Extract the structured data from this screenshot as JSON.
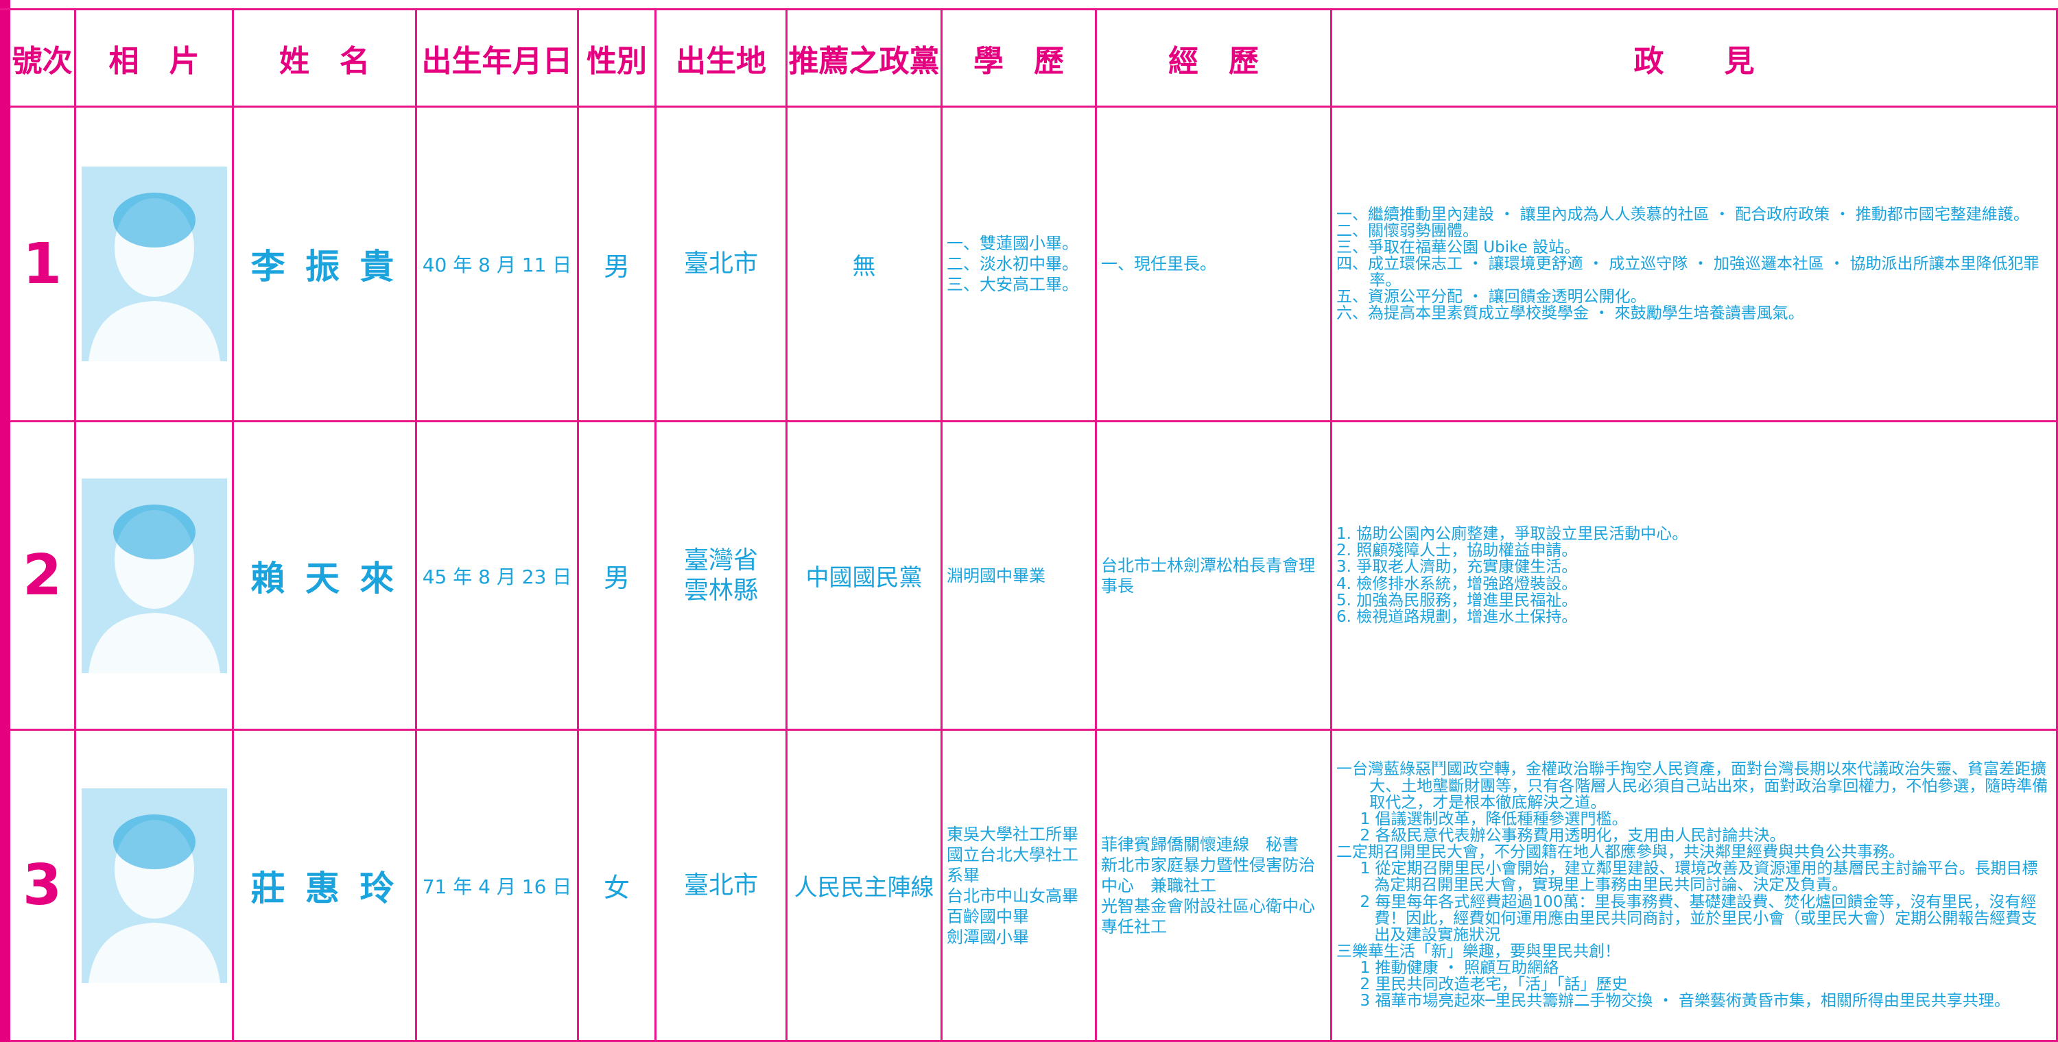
{
  "header": {
    "columns": [
      "號次",
      "相　片",
      "姓　名",
      "出生年月日",
      "性別",
      "出生地",
      "推薦之政黨",
      "學　歷",
      "經　歷",
      "政　　見"
    ]
  },
  "table": {
    "rows": [
      {
        "number": "1",
        "name": "李 振 貴",
        "birth": "40 年 8 月 11 日",
        "sex": "男",
        "place": [
          "臺北市"
        ],
        "party": "無",
        "education": [
          "一、雙蓮國小畢。",
          "二、淡水初中畢。",
          "三、大安高工畢。"
        ],
        "experience": [
          "一、現任里長。"
        ],
        "policy": [
          "一、繼續推動里內建設 ・ 讓里內成為人人羡慕的社區 ・ 配合政府政策 ・ 推動都市國宅整建維護。",
          "二、關懷弱勢團體。",
          "三、爭取在福華公園 Ubike 設站。",
          "四、成立環保志工 ・ 讓環境更舒適 ・ 成立巡守隊 ・ 加強巡邏本社區 ・ 協助派出所讓本里降低犯罪率。",
          "五、資源公平分配 ・ 讓回饋金透明公開化。",
          "六、為提高本里素質成立學校獎學金 ・ 來鼓勵學生培養讀書風氣。"
        ]
      },
      {
        "number": "2",
        "name": "賴 天 來",
        "birth": "45 年 8 月 23 日",
        "sex": "男",
        "place": [
          "臺灣省",
          "雲林縣"
        ],
        "party": "中國國民黨",
        "education": [
          "淵明國中畢業"
        ],
        "experience": [
          "台北市士林劍潭松柏長青會理事長"
        ],
        "policy": [
          "1. 協助公園內公廁整建，爭取設立里民活動中心。",
          "2. 照顧殘障人士，協助權益申請。",
          "3. 爭取老人濟助，充實康健生活。",
          "4. 檢修排水系統，增強路燈裝設。",
          "5. 加強為民服務，增進里民福祉。",
          "6. 檢視道路規劃，增進水土保持。"
        ]
      },
      {
        "number": "3",
        "name": "莊 惠 玲",
        "birth": "71 年 4 月 16 日",
        "sex": "女",
        "place": [
          "臺北市"
        ],
        "party": "人民民主陣線",
        "education": [
          "東吳大學社工所畢",
          "國立台北大學社工系畢",
          "台北市中山女高畢",
          "百齡國中畢",
          "劍潭國小畢"
        ],
        "experience": [
          "菲律賓歸僑關懷連線　秘書",
          "新北市家庭暴力暨性侵害防治中心　兼職社工",
          "光智基金會附設社區心衛中心　專任社工"
        ],
        "policy": [
          "一台灣藍綠惡鬥國政空轉，金權政治聯手掏空人民資產，面對台灣長期以來代議政治失靈、貧富差距擴大、土地壟斷財團等，只有各階層人民必須自己站出來，面對政治拿回權力，不怕參選，隨時準備取代之，才是根本徹底解決之道。",
          "1 倡議選制改革，降低種種參選門檻。",
          "2 各級民意代表辦公事務費用透明化，支用由人民討論共決。",
          "二定期召開里民大會，不分國籍在地人都應參與，共決鄰里經費與共負公共事務。",
          "1 從定期召開里民小會開始，建立鄰里建設、環境改善及資源運用的基層民主討論平台。長期目標為定期召開里民大會，實現里上事務由里民共同討論、決定及負責。",
          "2 每里每年各式經費超過100萬：里長事務費、基礎建設費、焚化爐回饋金等，沒有里民，沒有經費！因此，經費如何運用應由里民共同商討，並於里民小會（或里民大會）定期公開報告經費支出及建設實施狀況",
          "三樂華生活「新」樂趣，要與里民共創！",
          "1 推動健康 ・ 照顧互助網絡",
          "2 里民共同改造老宅，「活」「話」歷史",
          "3 福華市場亮起來─里民共籌辦二手物交換 ・ 音樂藝術黃昏市集，相關所得由里民共享共理。"
        ]
      }
    ]
  }
}
